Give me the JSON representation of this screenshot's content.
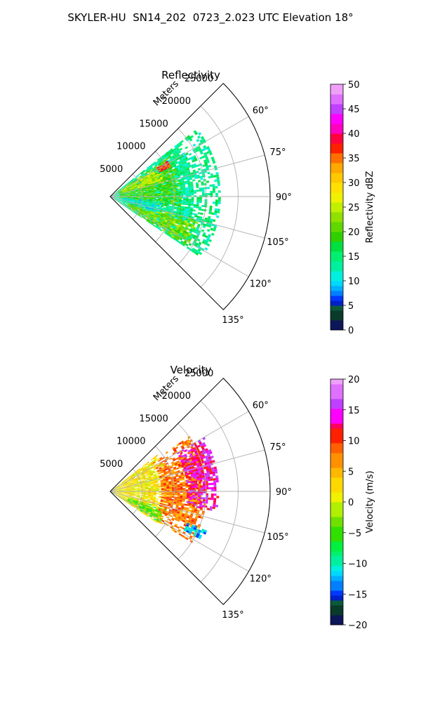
{
  "figure_title": "SKYLER-HU  SN14_202  0723_2.023 UTC Elevation 18°",
  "chart_data": [
    {
      "type": "polar-ppi",
      "title": "Reflectivity",
      "range_label": "Meters",
      "range_ticks": [
        5000,
        10000,
        15000,
        20000,
        25000
      ],
      "range_tick_labels": [
        "5000",
        "10000",
        "15000",
        "20000",
        "25000"
      ],
      "rmax": 25000,
      "angle_range_deg": [
        45,
        135
      ],
      "angle_ticks": [
        60,
        75,
        90,
        105,
        120,
        135
      ],
      "angle_tick_labels": [
        "60°",
        "75°",
        "90°",
        "105°",
        "120°",
        "135°"
      ],
      "grid": true,
      "colorbar": {
        "label": "Reflectivity dBZ",
        "vmin": 0,
        "vmax": 50,
        "ticks": [
          0,
          5,
          10,
          15,
          20,
          25,
          30,
          35,
          40,
          45,
          50
        ],
        "tick_labels": [
          "0",
          "5",
          "10",
          "15",
          "20",
          "25",
          "30",
          "35",
          "40",
          "45",
          "50"
        ]
      },
      "field_summary": "Dominant 12–20 dBZ echoes across 55°–125°, 22–30 dBZ near the radar and along 60°–75°, small 35–40 dBZ cores near 60° at ~10 km",
      "echo_regions": [
        {
          "az": [
            52,
            124
          ],
          "r": [
            500,
            17000
          ],
          "value": 14
        },
        {
          "az": [
            56,
            100
          ],
          "r": [
            1500,
            11000
          ],
          "value": 20
        },
        {
          "az": [
            57,
            74
          ],
          "r": [
            2000,
            8500
          ],
          "value": 25
        },
        {
          "az": [
            105,
            122
          ],
          "r": [
            3000,
            14000
          ],
          "value": 22
        },
        {
          "az": [
            58,
            64
          ],
          "r": [
            8500,
            10500
          ],
          "value": 37
        },
        {
          "az": [
            95,
            110
          ],
          "r": [
            2000,
            8000
          ],
          "value": 11
        }
      ]
    },
    {
      "type": "polar-ppi",
      "title": "Velocity",
      "range_label": "Meters",
      "range_ticks": [
        5000,
        10000,
        15000,
        20000,
        25000
      ],
      "range_tick_labels": [
        "5000",
        "10000",
        "15000",
        "20000",
        "25000"
      ],
      "rmax": 25000,
      "angle_range_deg": [
        45,
        135
      ],
      "angle_ticks": [
        60,
        75,
        90,
        105,
        120,
        135
      ],
      "angle_tick_labels": [
        "60°",
        "75°",
        "90°",
        "105°",
        "120°",
        "135°"
      ],
      "grid": true,
      "colorbar": {
        "label": "Velocity (m/s)",
        "vmin": -20,
        "vmax": 20,
        "ticks": [
          -20,
          -15,
          -10,
          -5,
          0,
          5,
          10,
          15,
          20
        ],
        "tick_labels": [
          "−20",
          "−15",
          "−10",
          "−5",
          "0",
          "5",
          "10",
          "15",
          "20"
        ]
      },
      "field_summary": "Mostly 0–5 m/s near the radar, 6–12 m/s at 8–15 km range, 12–17 m/s at the far edge near 75°–105°, −3 to −6 m/s patches near 110°–120°",
      "echo_regions": [
        {
          "az": [
            52,
            124
          ],
          "r": [
            500,
            9000
          ],
          "value": 2
        },
        {
          "az": [
            55,
            122
          ],
          "r": [
            8000,
            15000
          ],
          "value": 8
        },
        {
          "az": [
            60,
            100
          ],
          "r": [
            12000,
            17000
          ],
          "value": 14
        },
        {
          "az": [
            108,
            122
          ],
          "r": [
            3000,
            9000
          ],
          "value": -4
        },
        {
          "az": [
            112,
            118
          ],
          "r": [
            13000,
            16000
          ],
          "value": -12
        }
      ]
    }
  ]
}
